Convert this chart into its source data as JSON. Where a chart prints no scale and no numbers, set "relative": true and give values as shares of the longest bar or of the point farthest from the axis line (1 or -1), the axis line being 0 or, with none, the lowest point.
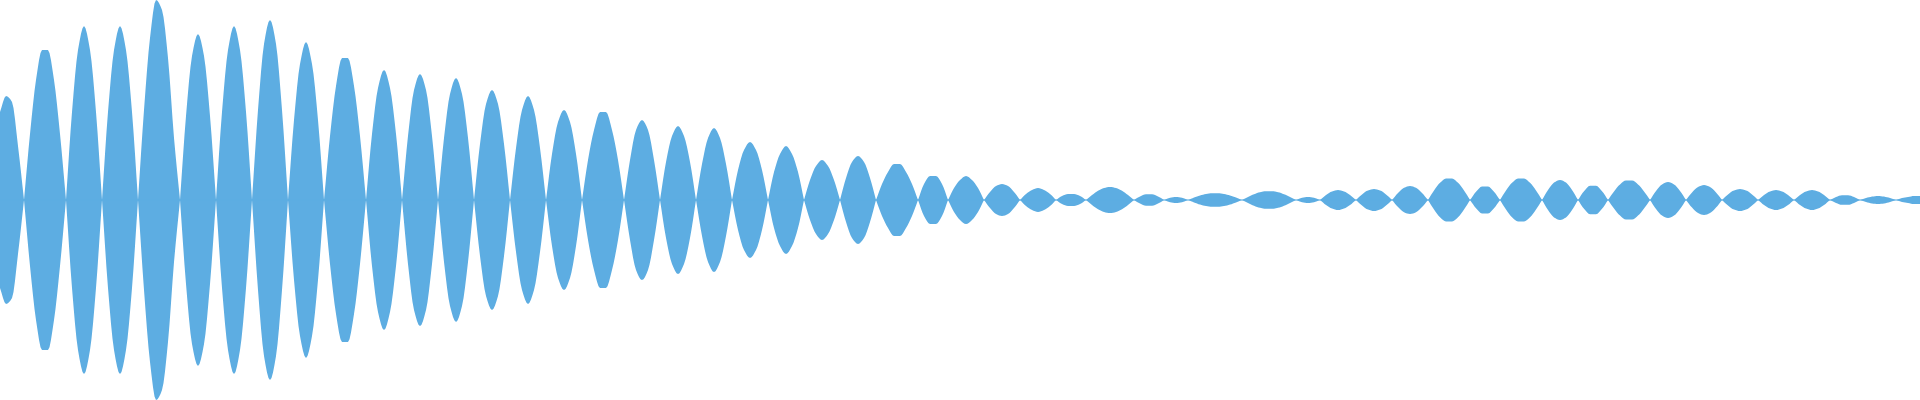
{
  "chart_data": {
    "type": "area",
    "relative": true,
    "categories": [
      null,
      null,
      null,
      null,
      null,
      null,
      null,
      null,
      null,
      null,
      null,
      null,
      null,
      null,
      null,
      null,
      null,
      null,
      null,
      null,
      null,
      null,
      null,
      null,
      null,
      null,
      null,
      null,
      null,
      null,
      null,
      null,
      null,
      null,
      null,
      null,
      null,
      null,
      null,
      null,
      null,
      null,
      null,
      null,
      null,
      null,
      null,
      null,
      null,
      null,
      null,
      null,
      null,
      null,
      null,
      null,
      null,
      null,
      null,
      null,
      null,
      null,
      null,
      null,
      null,
      null,
      null,
      null,
      null,
      null,
      null,
      null,
      null,
      null,
      null,
      null,
      null,
      null,
      null,
      null,
      null,
      null,
      null,
      null,
      null,
      null,
      null,
      null,
      null,
      null,
      null,
      null,
      null,
      null,
      null,
      null,
      null,
      null,
      null,
      null,
      null,
      null,
      null,
      null,
      null,
      null,
      null,
      null,
      null,
      null,
      null,
      null,
      null,
      null,
      null,
      null,
      null,
      null,
      null,
      null,
      null,
      null,
      null,
      null,
      null,
      null,
      null,
      null,
      null,
      null,
      null,
      null,
      null,
      null,
      null,
      null,
      null,
      null,
      null,
      null,
      null,
      null,
      null,
      null,
      null,
      null,
      null,
      null,
      null,
      null,
      null,
      null,
      null,
      null,
      null,
      null,
      null,
      null,
      null,
      null,
      null,
      null,
      null,
      null,
      null,
      null,
      null,
      null,
      null,
      null,
      null,
      null,
      null,
      null,
      null,
      null,
      null,
      null,
      null,
      null,
      null,
      null,
      null,
      null,
      null,
      null,
      null,
      null,
      null,
      null,
      null,
      null,
      null,
      null,
      null,
      null,
      null,
      null,
      null,
      null,
      null,
      null,
      null,
      null,
      null,
      null,
      null,
      null,
      null,
      null,
      null,
      null,
      null,
      null,
      null,
      null,
      null,
      null,
      null,
      null,
      null,
      null,
      null,
      null,
      null,
      null,
      null,
      null,
      null,
      null,
      null,
      null,
      null,
      null,
      null,
      null,
      null,
      null,
      null,
      null,
      null,
      null,
      null,
      null,
      null,
      null,
      null,
      null,
      null,
      null,
      null,
      null,
      null,
      null,
      null,
      null,
      null,
      null,
      null,
      null,
      null,
      null,
      null,
      null,
      null,
      null,
      null,
      null,
      null,
      null,
      null,
      null,
      null,
      null,
      null,
      null,
      null,
      null,
      null,
      null,
      null,
      null,
      null,
      null,
      null,
      null,
      null,
      null,
      null,
      null,
      null,
      null,
      null,
      null,
      null,
      null,
      null,
      null,
      null,
      null,
      null,
      null,
      null,
      null,
      null,
      null,
      null,
      null,
      null,
      null,
      null,
      null,
      null,
      null,
      null,
      null,
      null,
      null,
      null,
      null,
      null
    ],
    "series": [
      {
        "color": "#5dade2",
        "values": [
          0.44,
          0.52,
          0.49,
          0.27,
          0,
          0.33,
          0.6,
          0.75,
          0.75,
          0.6,
          0.33,
          0,
          0.44,
          0.75,
          0.87,
          0.75,
          0.44,
          0,
          0.44,
          0.75,
          0.87,
          0.75,
          0.44,
          0,
          0.45,
          0.81,
          1,
          0.95,
          0.71,
          0.31,
          0,
          0.42,
          0.72,
          0.83,
          0.72,
          0.42,
          0,
          0.44,
          0.75,
          0.87,
          0.75,
          0.44,
          0,
          0.45,
          0.78,
          0.9,
          0.78,
          0.45,
          0,
          0.4,
          0.68,
          0.79,
          0.68,
          0.4,
          0,
          0.32,
          0.57,
          0.71,
          0.71,
          0.57,
          0.32,
          0,
          0.33,
          0.56,
          0.65,
          0.56,
          0.33,
          0,
          0.32,
          0.55,
          0.63,
          0.55,
          0.32,
          0,
          0.31,
          0.53,
          0.61,
          0.53,
          0.31,
          0,
          0.28,
          0.48,
          0.55,
          0.48,
          0.28,
          0,
          0.26,
          0.45,
          0.52,
          0.45,
          0.26,
          0,
          0.23,
          0.39,
          0.45,
          0.39,
          0.23,
          0,
          0.2,
          0.35,
          0.44,
          0.44,
          0.35,
          0.2,
          0,
          0.2,
          0.35,
          0.4,
          0.35,
          0.2,
          0,
          0.19,
          0.32,
          0.37,
          0.32,
          0.19,
          0,
          0.18,
          0.31,
          0.36,
          0.31,
          0.18,
          0,
          0.15,
          0.25,
          0.29,
          0.25,
          0.15,
          0,
          0.14,
          0.23,
          0.27,
          0.23,
          0.14,
          0,
          0.1,
          0.17,
          0.2,
          0.17,
          0.1,
          0,
          0.11,
          0.19,
          0.22,
          0.19,
          0.11,
          0,
          0.08,
          0.14,
          0.18,
          0.18,
          0.14,
          0.08,
          0,
          0.08,
          0.12,
          0.12,
          0.08,
          0,
          0.06,
          0.1,
          0.12,
          0.1,
          0.06,
          0,
          0.04,
          0.07,
          0.08,
          0.07,
          0.04,
          0,
          0.03,
          0.05,
          0.06,
          0.05,
          0.03,
          0,
          0.02,
          0.03,
          0.03,
          0.02,
          0,
          0.025,
          0.046,
          0.06,
          0.065,
          0.06,
          0.046,
          0.025,
          0,
          0.018,
          0.029,
          0.029,
          0.018,
          0,
          0.011,
          0.015,
          0.011,
          0,
          0.012,
          0.023,
          0.03,
          0.034,
          0.034,
          0.03,
          0.023,
          0.012,
          0,
          0.015,
          0.029,
          0.039,
          0.044,
          0.044,
          0.039,
          0.029,
          0.015,
          0,
          0.011,
          0.015,
          0.011,
          0,
          0.025,
          0.043,
          0.05,
          0.043,
          0.025,
          0,
          0.028,
          0.048,
          0.055,
          0.048,
          0.028,
          0,
          0.035,
          0.061,
          0.07,
          0.061,
          0.035,
          0,
          0.048,
          0.086,
          0.107,
          0.107,
          0.086,
          0.048,
          0,
          0.041,
          0.067,
          0.067,
          0.041,
          0,
          0.048,
          0.086,
          0.107,
          0.107,
          0.086,
          0.048,
          0,
          0.05,
          0.087,
          0.1,
          0.087,
          0.05,
          0,
          0.044,
          0.071,
          0.071,
          0.044,
          0,
          0.043,
          0.078,
          0.098,
          0.098,
          0.078,
          0.043,
          0,
          0.045,
          0.078,
          0.09,
          0.078,
          0.045,
          0,
          0.038,
          0.065,
          0.075,
          0.065,
          0.038,
          0,
          0.028,
          0.048,
          0.055,
          0.048,
          0.028,
          0,
          0.025,
          0.043,
          0.05,
          0.043,
          0.025,
          0,
          0.025,
          0.043,
          0.05,
          0.043,
          0.025,
          0,
          0.015,
          0.024,
          0.024,
          0.015,
          0,
          0.01,
          0.017,
          0.02,
          0.017,
          0.01,
          0,
          0.01,
          0.015,
          0.02,
          0.02
        ]
      },
      {
        "color": "#5dade2",
        "values": [
          -0.44,
          -0.52,
          -0.49,
          -0.27,
          0,
          -0.33,
          -0.6,
          -0.75,
          -0.75,
          -0.6,
          -0.33,
          0,
          -0.44,
          -0.75,
          -0.87,
          -0.75,
          -0.44,
          0,
          -0.44,
          -0.75,
          -0.87,
          -0.75,
          -0.44,
          0,
          -0.45,
          -0.81,
          -1,
          -0.95,
          -0.71,
          -0.31,
          0,
          -0.42,
          -0.72,
          -0.83,
          -0.72,
          -0.42,
          0,
          -0.44,
          -0.75,
          -0.87,
          -0.75,
          -0.44,
          0,
          -0.45,
          -0.78,
          -0.9,
          -0.78,
          -0.45,
          0,
          -0.4,
          -0.68,
          -0.79,
          -0.68,
          -0.4,
          0,
          -0.32,
          -0.57,
          -0.71,
          -0.71,
          -0.57,
          -0.32,
          0,
          -0.33,
          -0.56,
          -0.65,
          -0.56,
          -0.33,
          0,
          -0.32,
          -0.55,
          -0.63,
          -0.55,
          -0.32,
          0,
          -0.31,
          -0.53,
          -0.61,
          -0.53,
          -0.31,
          0,
          -0.28,
          -0.48,
          -0.55,
          -0.48,
          -0.28,
          0,
          -0.26,
          -0.45,
          -0.52,
          -0.45,
          -0.26,
          0,
          -0.23,
          -0.39,
          -0.45,
          -0.39,
          -0.23,
          0,
          -0.2,
          -0.35,
          -0.44,
          -0.44,
          -0.35,
          -0.2,
          0,
          -0.2,
          -0.35,
          -0.4,
          -0.35,
          -0.2,
          0,
          -0.19,
          -0.32,
          -0.37,
          -0.32,
          -0.19,
          0,
          -0.18,
          -0.31,
          -0.36,
          -0.31,
          -0.18,
          0,
          -0.15,
          -0.25,
          -0.29,
          -0.25,
          -0.15,
          0,
          -0.14,
          -0.23,
          -0.27,
          -0.23,
          -0.14,
          0,
          -0.1,
          -0.17,
          -0.2,
          -0.17,
          -0.1,
          0,
          -0.11,
          -0.19,
          -0.22,
          -0.19,
          -0.11,
          0,
          -0.08,
          -0.14,
          -0.18,
          -0.18,
          -0.14,
          -0.08,
          0,
          -0.08,
          -0.12,
          -0.12,
          -0.08,
          0,
          -0.06,
          -0.1,
          -0.12,
          -0.1,
          -0.06,
          0,
          -0.04,
          -0.07,
          -0.08,
          -0.07,
          -0.04,
          0,
          -0.03,
          -0.05,
          -0.06,
          -0.05,
          -0.03,
          0,
          -0.02,
          -0.03,
          -0.03,
          -0.02,
          0,
          -0.025,
          -0.046,
          -0.06,
          -0.065,
          -0.06,
          -0.046,
          -0.025,
          0,
          -0.018,
          -0.029,
          -0.029,
          -0.018,
          0,
          -0.011,
          -0.015,
          -0.011,
          0,
          -0.012,
          -0.023,
          -0.03,
          -0.034,
          -0.034,
          -0.03,
          -0.023,
          -0.012,
          0,
          -0.015,
          -0.029,
          -0.039,
          -0.044,
          -0.044,
          -0.039,
          -0.029,
          -0.015,
          0,
          -0.011,
          -0.015,
          -0.011,
          0,
          -0.025,
          -0.043,
          -0.05,
          -0.043,
          -0.025,
          0,
          -0.028,
          -0.048,
          -0.055,
          -0.048,
          -0.028,
          0,
          -0.035,
          -0.061,
          -0.07,
          -0.061,
          -0.035,
          0,
          -0.048,
          -0.086,
          -0.107,
          -0.107,
          -0.086,
          -0.048,
          0,
          -0.041,
          -0.067,
          -0.067,
          -0.041,
          0,
          -0.048,
          -0.086,
          -0.107,
          -0.107,
          -0.086,
          -0.048,
          0,
          -0.05,
          -0.087,
          -0.1,
          -0.087,
          -0.05,
          0,
          -0.044,
          -0.071,
          -0.071,
          -0.044,
          0,
          -0.043,
          -0.078,
          -0.098,
          -0.098,
          -0.078,
          -0.043,
          0,
          -0.045,
          -0.078,
          -0.09,
          -0.078,
          -0.045,
          0,
          -0.038,
          -0.065,
          -0.075,
          -0.065,
          -0.038,
          0,
          -0.028,
          -0.048,
          -0.055,
          -0.048,
          -0.028,
          0,
          -0.025,
          -0.043,
          -0.05,
          -0.043,
          -0.025,
          0,
          -0.025,
          -0.043,
          -0.05,
          -0.043,
          -0.025,
          0,
          -0.015,
          -0.024,
          -0.024,
          -0.015,
          0,
          -0.01,
          -0.017,
          -0.02,
          -0.017,
          -0.01,
          0,
          -0.01,
          -0.015,
          -0.02,
          -0.02
        ]
      }
    ],
    "ref_lines": [
      {
        "axis": "y",
        "value": 0,
        "color": "#5dade2"
      }
    ]
  }
}
